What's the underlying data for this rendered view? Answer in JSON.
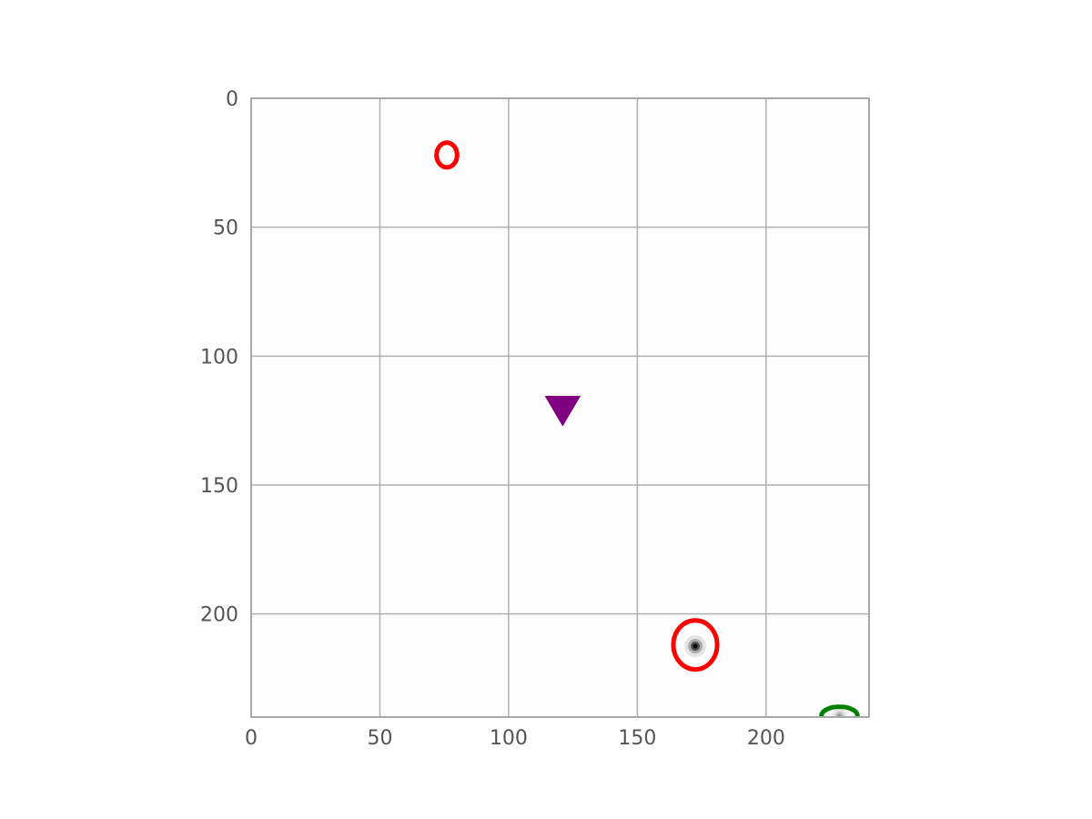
{
  "chart_data": {
    "type": "scatter",
    "title": "",
    "xlabel": "",
    "ylabel": "",
    "xlim": [
      0,
      240
    ],
    "ylim": [
      240,
      0
    ],
    "y_inverted": true,
    "grid": true,
    "background": "image",
    "x_ticks": [
      0,
      50,
      100,
      150,
      200
    ],
    "y_ticks": [
      0,
      50,
      100,
      150,
      200
    ],
    "blobs": [
      {
        "x": 172.5,
        "y": 212.5,
        "intensity": 1.0
      },
      {
        "x": 228.5,
        "y": 239.5,
        "intensity": 0.25
      }
    ],
    "markers": [
      {
        "shape": "ellipse",
        "x": 76,
        "y": 22,
        "rx": 4,
        "ry": 4.8,
        "color": "#ff0000"
      },
      {
        "shape": "ellipse",
        "x": 172.5,
        "y": 212,
        "rx": 8.5,
        "ry": 9.5,
        "color": "#ff0000"
      },
      {
        "shape": "ellipse",
        "x": 228.5,
        "y": 239.5,
        "rx": 7,
        "ry": 3.5,
        "color": "#008000"
      },
      {
        "shape": "triangle-down",
        "x": 121,
        "y": 121,
        "size": 7,
        "color": "#800080"
      }
    ]
  }
}
